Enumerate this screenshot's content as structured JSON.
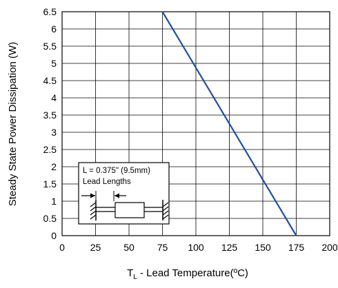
{
  "chart_data": {
    "type": "line",
    "title": "",
    "xlabel_main": "T",
    "xlabel_sub": "L",
    "xlabel_rest": " - Lead Temperature(ºC)",
    "ylabel": "Steady State Power Dissipation (W)",
    "xlim": [
      0,
      200
    ],
    "ylim": [
      0,
      6.5
    ],
    "xticks": [
      0,
      25,
      50,
      75,
      100,
      125,
      150,
      175,
      200
    ],
    "yticks": [
      0,
      0.5,
      1,
      1.5,
      2,
      2.5,
      3,
      3.5,
      4,
      4.5,
      5,
      5.5,
      6,
      6.5
    ],
    "xtick_labels": [
      "0",
      "25",
      "50",
      "75",
      "100",
      "125",
      "150",
      "175",
      "200"
    ],
    "ytick_labels": [
      "0",
      "0.5",
      "1",
      "1.5",
      "2",
      "2.5",
      "3",
      "3.5",
      "4",
      "4.5",
      "5",
      "5.5",
      "6",
      "6.5"
    ],
    "grid": true,
    "series": [
      {
        "x": [
          75,
          175
        ],
        "y": [
          6.5,
          0
        ],
        "color": "#1f4e9c"
      }
    ],
    "annotation": {
      "line1": "L = 0.375\" (9.5mm)",
      "line2": "Lead Lengths"
    }
  }
}
